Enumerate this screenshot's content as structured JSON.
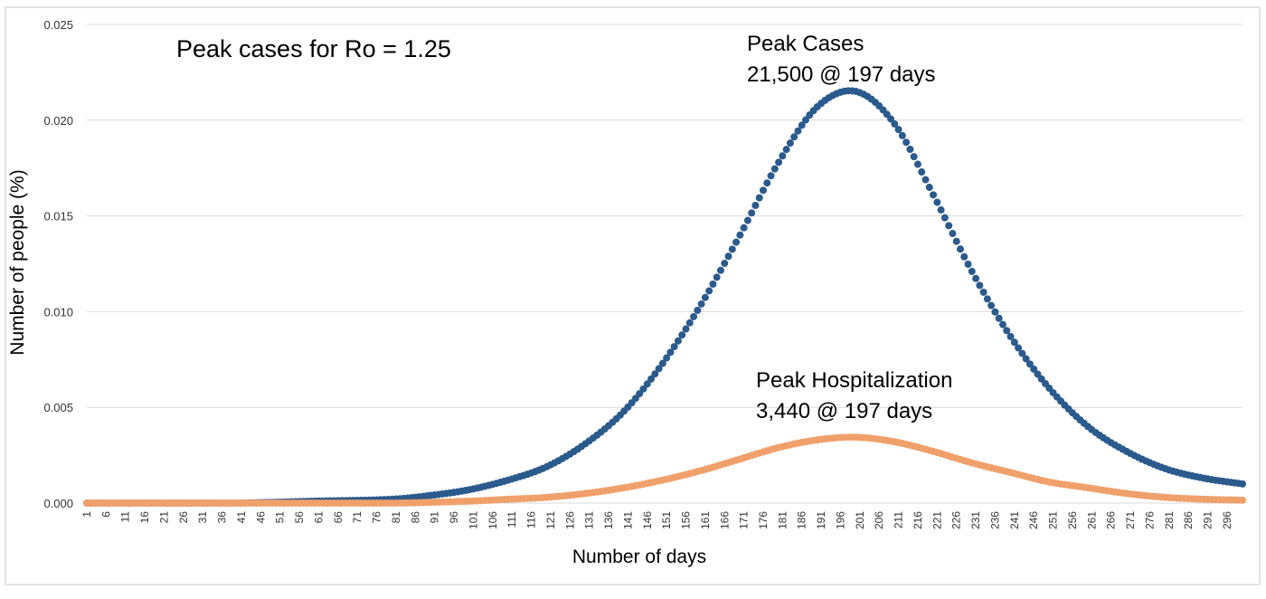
{
  "chart_data": {
    "type": "scatter",
    "title": "Peak cases for Ro = 1.25",
    "xlabel": "Number of days",
    "ylabel": "Number of people (%)",
    "xlim": [
      1,
      300
    ],
    "ylim": [
      0,
      0.025
    ],
    "y_ticks": [
      "0.000",
      "0.005",
      "0.010",
      "0.015",
      "0.020",
      "0.025"
    ],
    "x_tick_start": 1,
    "x_tick_step": 5,
    "x_tick_end": 296,
    "grid": "horizontal",
    "colors": {
      "cases": "#2b5a8c",
      "hospitalization": "#f0a06a",
      "grid": "#d9d9d9",
      "frame": "#c8c8c8"
    },
    "series": [
      {
        "key": "cases",
        "peak_value": 0.0215,
        "peak_day": 200,
        "x": [
          1,
          20,
          40,
          60,
          80,
          90,
          100,
          110,
          120,
          130,
          140,
          150,
          160,
          170,
          180,
          190,
          200,
          210,
          220,
          230,
          240,
          250,
          260,
          270,
          280,
          290,
          300
        ],
        "y": [
          0.0,
          0.0,
          0.0,
          0.0001,
          0.0002,
          0.0004,
          0.0007,
          0.0012,
          0.0019,
          0.0031,
          0.0048,
          0.0073,
          0.0104,
          0.014,
          0.0178,
          0.0207,
          0.0215,
          0.0198,
          0.0161,
          0.0121,
          0.0087,
          0.006,
          0.004,
          0.0027,
          0.0018,
          0.0013,
          0.001
        ]
      },
      {
        "key": "hospitalization",
        "peak_value": 0.00344,
        "peak_day": 200,
        "x": [
          1,
          40,
          80,
          100,
          110,
          120,
          130,
          140,
          150,
          160,
          170,
          180,
          190,
          200,
          210,
          220,
          230,
          240,
          250,
          260,
          270,
          280,
          290,
          300
        ],
        "y": [
          0.0,
          0.0,
          0.0,
          0.0001,
          0.0002,
          0.0003,
          0.0005,
          0.0008,
          0.0012,
          0.0017,
          0.0023,
          0.0029,
          0.0033,
          0.00344,
          0.0032,
          0.0027,
          0.0021,
          0.0016,
          0.0011,
          0.0008,
          0.0005,
          0.0003,
          0.0002,
          0.00015
        ]
      }
    ],
    "annotations": {
      "cases_title": "Peak Cases",
      "cases_value": "21,500 @ 197 days",
      "hosp_title": "Peak Hospitalization",
      "hosp_value": "3,440 @ 197 days"
    }
  }
}
